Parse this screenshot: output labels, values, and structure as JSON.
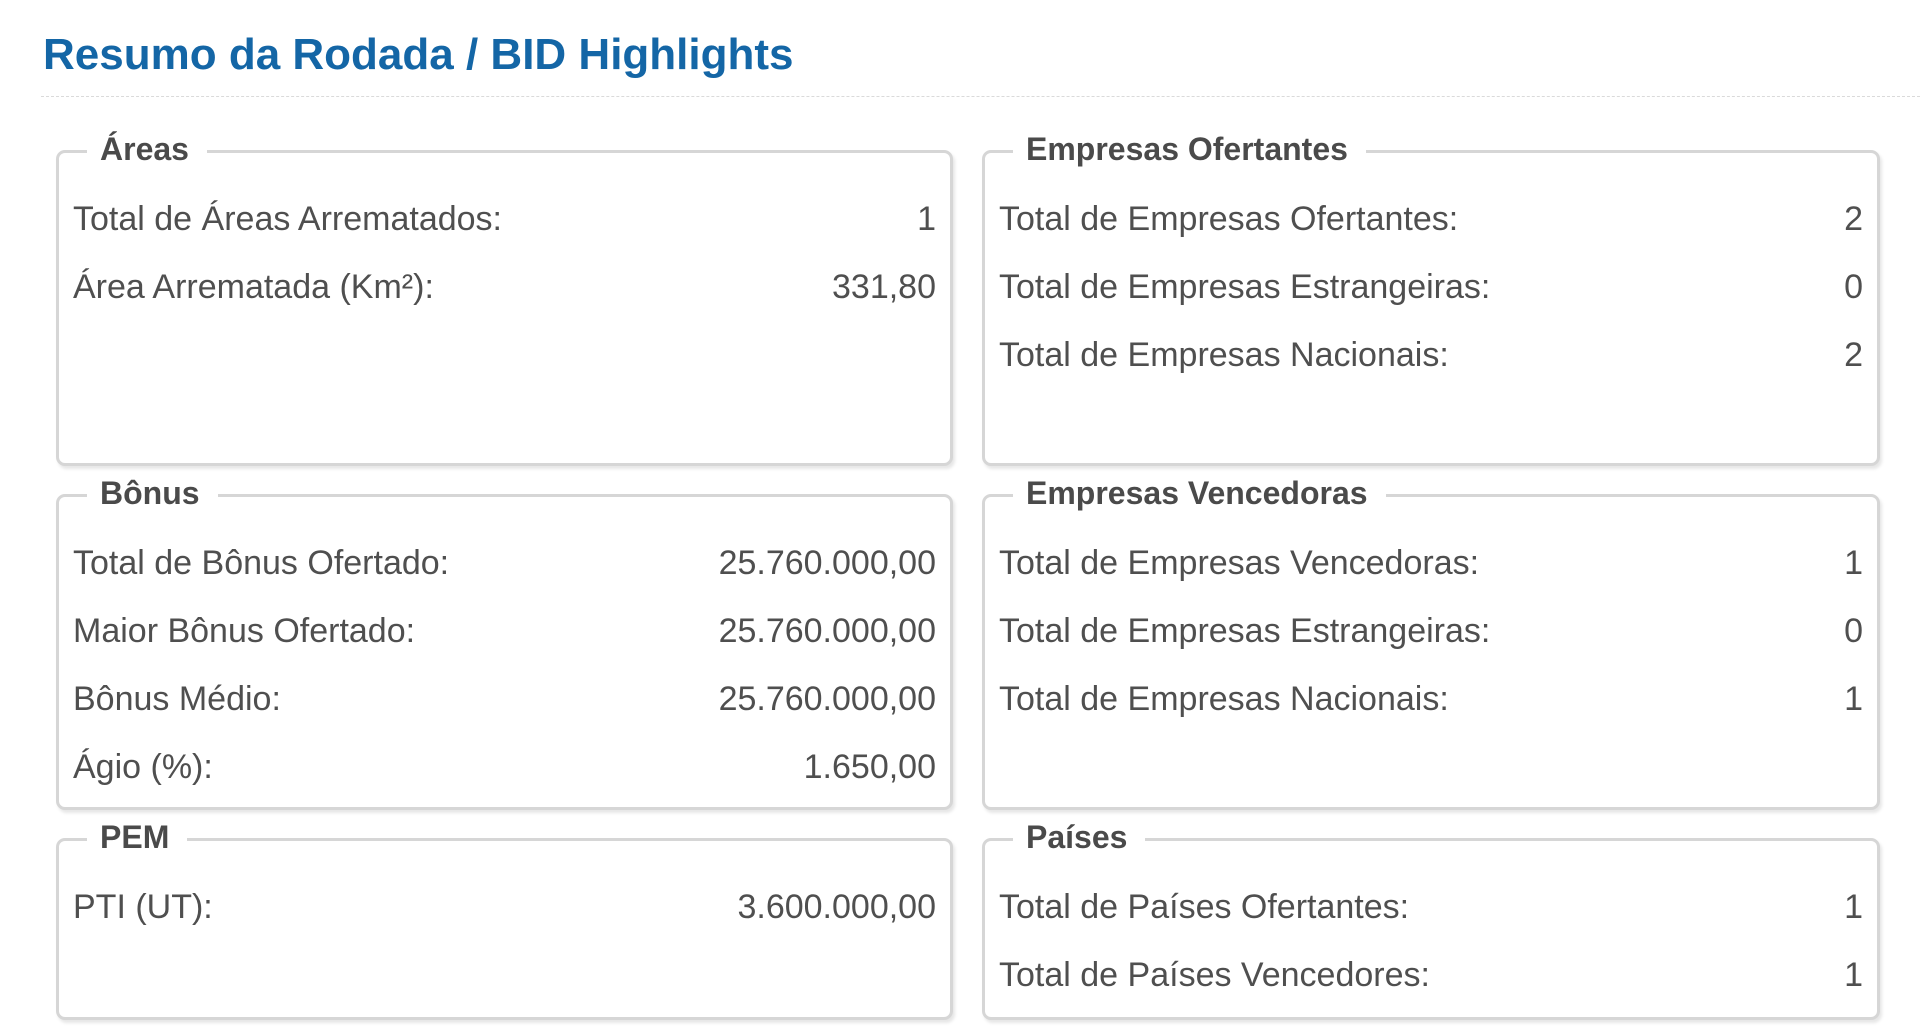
{
  "page": {
    "title": "Resumo da Rodada / BID Highlights"
  },
  "panels": {
    "areas": {
      "legend": "Áreas",
      "rows": [
        {
          "label": "Total de Áreas Arrematados:",
          "value": "1"
        },
        {
          "label": "Área Arrematada (Km²):",
          "value": "331,80"
        }
      ]
    },
    "bonus": {
      "legend": "Bônus",
      "rows": [
        {
          "label": "Total de Bônus Ofertado:",
          "value": "25.760.000,00"
        },
        {
          "label": "Maior Bônus Ofertado:",
          "value": "25.760.000,00"
        },
        {
          "label": "Bônus Médio:",
          "value": "25.760.000,00"
        },
        {
          "label": "Ágio (%):",
          "value": "1.650,00"
        }
      ]
    },
    "pem": {
      "legend": "PEM",
      "rows": [
        {
          "label": "PTI (UT):",
          "value": "3.600.000,00"
        }
      ]
    },
    "empresas_ofertantes": {
      "legend": "Empresas Ofertantes",
      "rows": [
        {
          "label": "Total de Empresas Ofertantes:",
          "value": "2"
        },
        {
          "label": "Total de Empresas Estrangeiras:",
          "value": "0"
        },
        {
          "label": "Total de Empresas Nacionais:",
          "value": "2"
        }
      ]
    },
    "empresas_vencedoras": {
      "legend": "Empresas Vencedoras",
      "rows": [
        {
          "label": "Total de Empresas Vencedoras:",
          "value": "1"
        },
        {
          "label": "Total de Empresas Estrangeiras:",
          "value": "0"
        },
        {
          "label": "Total de Empresas Nacionais:",
          "value": "1"
        }
      ]
    },
    "paises": {
      "legend": "Países",
      "rows": [
        {
          "label": "Total de Países Ofertantes:",
          "value": "1"
        },
        {
          "label": "Total de Países Vencedores:",
          "value": "1"
        }
      ]
    }
  },
  "colors": {
    "title": "#1466a6",
    "text": "#4f4f4f",
    "legend": "#4a4a4a",
    "border": "#d6d6d6"
  }
}
